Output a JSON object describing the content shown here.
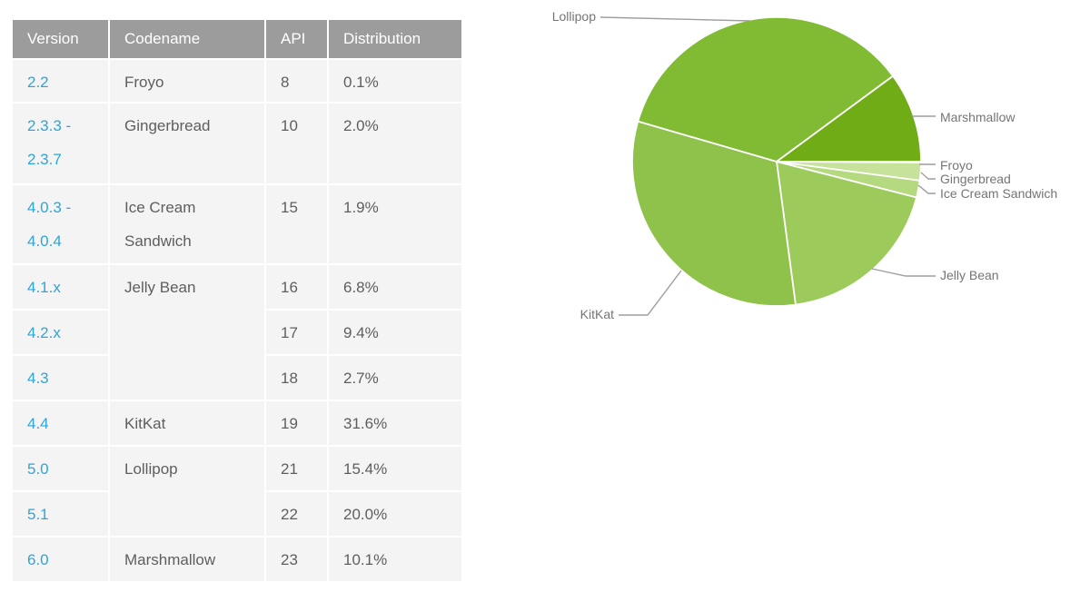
{
  "table": {
    "headers": [
      "Version",
      "Codename",
      "API",
      "Distribution"
    ],
    "rows": [
      {
        "version": "2.2",
        "codename": "Froyo",
        "api": "8",
        "distribution": "0.1%"
      },
      {
        "version": "2.3.3 -\n2.3.7",
        "codename": "Gingerbread",
        "api": "10",
        "distribution": "2.0%"
      },
      {
        "version": "4.0.3 -\n4.0.4",
        "codename": "Ice Cream Sandwich",
        "api": "15",
        "distribution": "1.9%"
      },
      {
        "version": "4.1.x",
        "codename": "Jelly Bean",
        "api": "16",
        "distribution": "6.8%"
      },
      {
        "version": "4.2.x",
        "api": "17",
        "distribution": "9.4%"
      },
      {
        "version": "4.3",
        "api": "18",
        "distribution": "2.7%"
      },
      {
        "version": "4.4",
        "codename": "KitKat",
        "api": "19",
        "distribution": "31.6%"
      },
      {
        "version": "5.0",
        "codename": "Lollipop",
        "api": "21",
        "distribution": "15.4%"
      },
      {
        "version": "5.1",
        "api": "22",
        "distribution": "20.0%"
      },
      {
        "version": "6.0",
        "codename": "Marshmallow",
        "api": "23",
        "distribution": "10.1%"
      }
    ],
    "link_color": "#2da5d9",
    "header_bg": "#9c9c9c",
    "cell_bg": "#f4f4f4"
  },
  "chart_data": {
    "type": "pie",
    "title": "",
    "labels": [
      "Froyo",
      "Gingerbread",
      "Ice Cream Sandwich",
      "Jelly Bean",
      "KitKat",
      "Lollipop",
      "Marshmallow"
    ],
    "values": [
      0.1,
      2.0,
      1.9,
      18.9,
      31.6,
      35.4,
      10.1
    ],
    "colors": [
      "#d9ecb6",
      "#c6e29b",
      "#b5d97f",
      "#9ccb5c",
      "#8ec24a",
      "#80bb33",
      "#6fac15"
    ],
    "start_angle_deg": 0,
    "direction": "clockwise",
    "slice_border_color": "#ffffff",
    "label_color": "#757575",
    "legend": "outside-labels-with-connectors"
  }
}
